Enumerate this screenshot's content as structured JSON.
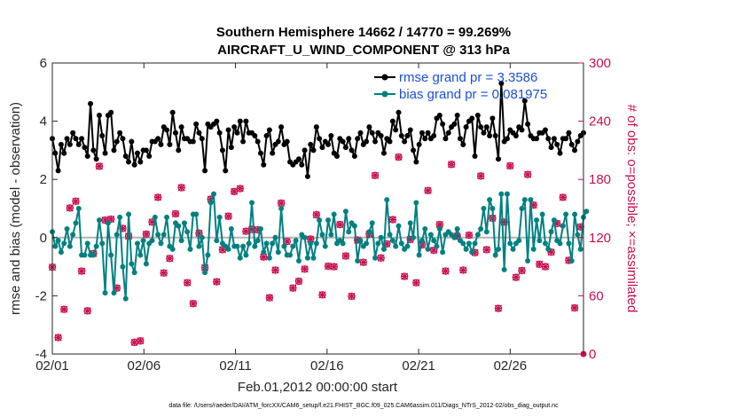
{
  "chart_data": {
    "type": "line",
    "title_line1": "Southern Hemisphere 14662 / 14770 = 99.269%",
    "title_line2": "AIRCRAFT_U_WIND_COMPONENT @ 313 hPa",
    "xlabel": "Feb.01,2012 00:00:00 start",
    "ylabel_left": "rmse and bias (model - observation)",
    "ylabel_right": "# of obs: o=possible; ×=assimilated",
    "footnote": "data file: /Users/raeder/DAI/ATM_forcXX/CAM6_setup/f.e21.FHIST_BGC.f09_025.CAM6assim.011/Diags_NTrS_2012-02/obs_diag_output.nc",
    "xlim": [
      1,
      30
    ],
    "x_ticks": [
      {
        "value": 1,
        "label": "02/01"
      },
      {
        "value": 6,
        "label": "02/06"
      },
      {
        "value": 11,
        "label": "02/11"
      },
      {
        "value": 16,
        "label": "02/16"
      },
      {
        "value": 21,
        "label": "02/21"
      },
      {
        "value": 26,
        "label": "02/26"
      }
    ],
    "ylim_left": [
      -4,
      6
    ],
    "yticks_left": [
      "-4",
      "-2",
      "0",
      "2",
      "4",
      "6"
    ],
    "ylim_right": [
      0,
      300
    ],
    "yticks_right": [
      "0",
      "60",
      "120",
      "180",
      "240",
      "300"
    ],
    "legend": [
      {
        "label": "rmse grand pr = 3.3586",
        "color": "#000000"
      },
      {
        "label": "bias grand pr = 0.081975",
        "color": "#008080"
      }
    ],
    "colors": {
      "rmse": "#000000",
      "bias": "#008080",
      "obs": "#c8104d",
      "zero": "#b3b3b3"
    },
    "rmse": [
      3.4,
      2.9,
      2.3,
      3.2,
      2.9,
      3.4,
      3.2,
      3.6,
      3.4,
      3.2,
      3.4,
      3.1,
      2.8,
      4.6,
      3.0,
      2.7,
      4.2,
      3.5,
      2.9,
      4.2,
      4.3,
      3.0,
      3.3,
      3.6,
      3.4,
      2.8,
      2.6,
      3.3,
      2.5,
      2.9,
      2.6,
      3.0,
      3.0,
      2.8,
      3.3,
      3.3,
      3.4,
      3.2,
      3.8,
      3.7,
      3.2,
      4.3,
      3.6,
      3.0,
      3.8,
      3.4,
      3.4,
      3.3,
      3.3,
      3.9,
      3.6,
      3.4,
      2.3,
      3.9,
      3.8,
      3.9,
      4.0,
      3.6,
      3.0,
      2.3,
      3.7,
      3.1,
      3.8,
      3.6,
      4.0,
      3.3,
      4.0,
      3.6,
      3.6,
      3.5,
      3.3,
      2.9,
      2.5,
      3.5,
      3.7,
      2.9,
      3.2,
      3.3,
      3.8,
      3.2,
      3.3,
      2.6,
      2.5,
      2.6,
      2.7,
      2.5,
      3.0,
      2.1,
      3.2,
      3.0,
      3.8,
      3.4,
      3.1,
      3.3,
      3.2,
      3.5,
      2.9,
      2.8,
      3.4,
      3.3,
      3.1,
      3.4,
      3.0,
      2.8,
      3.4,
      3.6,
      3.2,
      3.3,
      3.8,
      3.6,
      3.3,
      3.6,
      3.5,
      2.9,
      3.4,
      3.3,
      4.0,
      3.7,
      4.3,
      3.5,
      3.3,
      3.5,
      3.7,
      3.0,
      2.6,
      3.2,
      3.6,
      3.4,
      3.6,
      3.4,
      3.5,
      4.1,
      4.2,
      3.9,
      3.4,
      3.6,
      3.8,
      3.9,
      4.2,
      3.4,
      3.2,
      3.8,
      4.0,
      4.1,
      2.8,
      4.2,
      3.8,
      3.6,
      3.8,
      3.5,
      4.1,
      3.5,
      2.7,
      5.3,
      3.3,
      3.4,
      3.7,
      3.6,
      3.5,
      3.8,
      3.7,
      4.7,
      3.9,
      3.5,
      3.4,
      3.4,
      3.6,
      3.6,
      3.7,
      3.4,
      3.1,
      3.4,
      3.2,
      2.9,
      3.4,
      3.4,
      3.6,
      3.2,
      3.0,
      3.3,
      3.5,
      3.6
    ],
    "bias": [
      0.2,
      -0.3,
      -0.1,
      -0.5,
      -0.2,
      0.3,
      -0.3,
      0.1,
      0.5,
      1.0,
      -0.6,
      -0.6,
      -0.2,
      -0.6,
      -0.6,
      -0.3,
      0.6,
      -0.2,
      -1.9,
      0.5,
      -0.6,
      -1.9,
      0.1,
      0.7,
      -1.0,
      -2.1,
      0.8,
      -0.9,
      -1.2,
      -0.2,
      -0.6,
      -0.1,
      -0.9,
      -0.2,
      -0.1,
      0.7,
      0.1,
      -0.2,
      0.1,
      0.7,
      -0.3,
      -0.4,
      0.5,
      0.4,
      -0.1,
      0.5,
      0.2,
      -0.4,
      0.8,
      0.8,
      -0.3,
      0.0,
      -1.2,
      -0.6,
      1.2,
      1.5,
      -0.1,
      0.7,
      -0.2,
      -0.3,
      -0.4,
      0.3,
      -0.3,
      -0.3,
      -0.7,
      -0.3,
      -0.6,
      -0.2,
      1.2,
      -0.3,
      -0.1,
      0.3,
      -0.5,
      -0.2,
      -0.7,
      -0.2,
      0.0,
      -0.5,
      1.0,
      -0.3,
      -0.6,
      -0.6,
      -0.3,
      -0.1,
      -0.8,
      0.1,
      0.0,
      -0.7,
      -0.2,
      -0.7,
      -0.2,
      0.6,
      0.1,
      -0.3,
      0.6,
      0.1,
      0.8,
      -0.2,
      -0.1,
      -0.2,
      0.9,
      0.2,
      0.5,
      0.4,
      -0.8,
      -0.1,
      -0.3,
      -0.2,
      0.2,
      0.5,
      -0.7,
      -0.2,
      0.0,
      -0.4,
      1.3,
      0.1,
      -0.1,
      -0.3,
      0.4,
      -0.2,
      -0.4,
      -0.3,
      0.5,
      0.0,
      1.2,
      -0.6,
      -0.1,
      0.3,
      -0.4,
      0.1,
      -0.1,
      -0.3,
      0.3,
      -0.5,
      0.1,
      0.2,
      0.1,
      0.0,
      0.3,
      -0.1,
      -0.2,
      -0.4,
      -0.2,
      -0.5,
      -0.2,
      0.1,
      0.3,
      1.0,
      0.2,
      1.3,
      1.0,
      -0.6,
      -0.4,
      1.5,
      -1.1,
      1.5,
      -0.2,
      -0.4,
      -0.2,
      -0.1,
      1.0,
      1.3,
      -0.8,
      1.3,
      -0.4,
      0.6,
      -0.1,
      0.8,
      -0.2,
      -0.4,
      0.2,
      0.6,
      -0.1,
      -0.2,
      0.4,
      0.8,
      -0.2,
      -0.8,
      0.8,
      0.1,
      -0.4,
      0.7,
      0.9
    ]
  }
}
